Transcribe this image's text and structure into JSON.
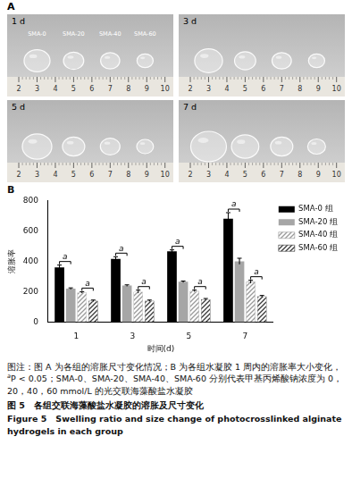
{
  "panel_a": {
    "label": "A",
    "photos": [
      {
        "day": "1 d",
        "samples": [
          "SMA-0",
          "SMA-20",
          "SMA-40",
          "SMA-60"
        ],
        "ruler": [
          2,
          3,
          4,
          5,
          6,
          7,
          8,
          9,
          10
        ]
      },
      {
        "day": "3 d",
        "ruler": [
          2,
          3,
          4,
          5,
          6,
          7,
          8,
          9,
          10
        ]
      },
      {
        "day": "5 d",
        "ruler": [
          2,
          3,
          4,
          5,
          6,
          7,
          8,
          9,
          10
        ]
      },
      {
        "day": "7 d",
        "ruler": [
          2,
          3,
          4,
          5,
          6,
          7,
          8,
          9,
          10
        ]
      }
    ]
  },
  "panel_b": {
    "label": "B"
  },
  "chart_data": {
    "type": "bar",
    "x_label": "时间(d)",
    "y_label": "溶胀率",
    "categories": [
      "1",
      "3",
      "5",
      "7"
    ],
    "series": [
      {
        "name": "SMA-0 组",
        "color": "#000000",
        "values": [
          360,
          415,
          465,
          680
        ],
        "errors": [
          15,
          15,
          10,
          40
        ]
      },
      {
        "name": "SMA-20 组",
        "color": "#a6a6a6",
        "values": [
          220,
          240,
          265,
          400
        ],
        "errors": [
          5,
          5,
          5,
          20
        ]
      },
      {
        "name": "SMA-40 组",
        "color": "#9a9a9a",
        "values": [
          195,
          200,
          205,
          265
        ],
        "errors": [
          5,
          10,
          5,
          10
        ]
      },
      {
        "name": "SMA-60 组",
        "color": "#3a3a3a",
        "values": [
          140,
          140,
          150,
          170
        ],
        "errors": [
          5,
          5,
          5,
          5
        ]
      }
    ],
    "annotations": [
      {
        "category": "1",
        "between": [
          "SMA-0 组",
          "SMA-20 组"
        ],
        "text": "a"
      },
      {
        "category": "1",
        "between": [
          "SMA-40 组",
          "SMA-60 组"
        ],
        "text": "a"
      },
      {
        "category": "3",
        "between": [
          "SMA-0 组",
          "SMA-20 组"
        ],
        "text": "a"
      },
      {
        "category": "3",
        "between": [
          "SMA-40 组",
          "SMA-60 组"
        ],
        "text": "a"
      },
      {
        "category": "5",
        "between": [
          "SMA-0 组",
          "SMA-20 组"
        ],
        "text": "a"
      },
      {
        "category": "5",
        "between": [
          "SMA-40 组",
          "SMA-60 组"
        ],
        "text": "a"
      },
      {
        "category": "7",
        "between": [
          "SMA-0 组",
          "SMA-20 组"
        ],
        "text": "a"
      },
      {
        "category": "7",
        "between": [
          "SMA-40 组",
          "SMA-60 组"
        ],
        "text": "a"
      }
    ],
    "ylim": [
      0,
      800
    ],
    "yticks": [
      0,
      200,
      400,
      600,
      800
    ],
    "grid": false,
    "legend": "right"
  },
  "caption": {
    "note": [
      {
        "text": "图注：图 A 为各组的溶胀尺寸变化情况；B 为各组水凝胶 1 周内的溶胀率大小变化，"
      },
      {
        "text": "a",
        "sup": true
      },
      {
        "text": "P < 0.05；SMA-0、SMA-20、SMA-40、SMA-60 分别代表甲基丙烯酸钠浓度为 0，20，40，60 mmol/L 的光交联海藻酸盐水凝胶"
      }
    ],
    "title_cn": "图 5　各组交联海藻酸盐水凝胶的溶胀及尺寸变化",
    "title_en": "Figure 5　Swelling ratio and size change of photocrosslinked alginate hydrogels in each group"
  }
}
